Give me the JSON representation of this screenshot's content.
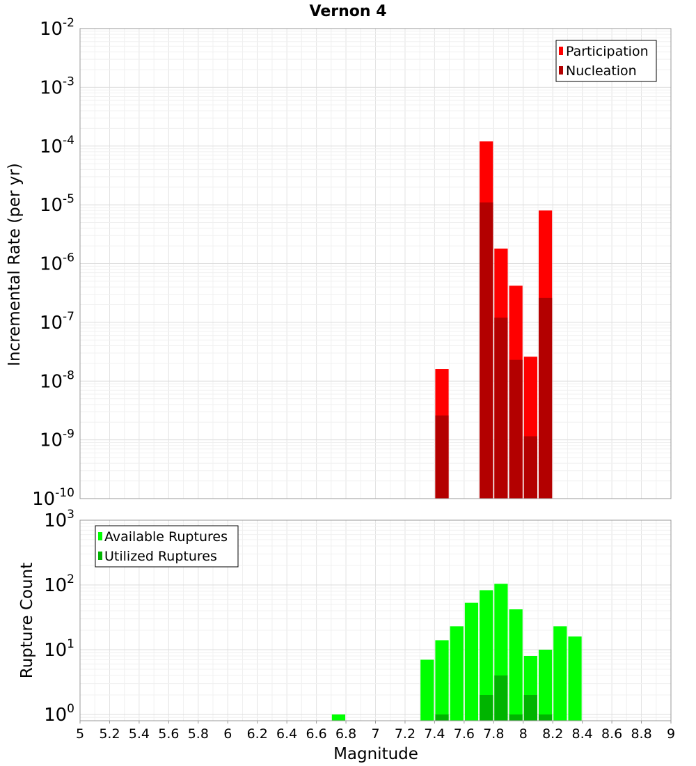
{
  "chart_data": [
    {
      "type": "bar",
      "title": "Vernon 4",
      "ylabel": "Incremental Rate (per yr)",
      "xlabel": "",
      "xlim": [
        5,
        9
      ],
      "ylim": [
        1e-10,
        0.01
      ],
      "yscale": "log",
      "y_tick_exponents": [
        "-10",
        "-9",
        "-8",
        "-7",
        "-6",
        "-5",
        "-4",
        "-3",
        "-2"
      ],
      "y_tick_base": "10",
      "bin_width": 0.1,
      "legend_position": "top-right",
      "series": [
        {
          "name": "Participation",
          "color": "#ff0000",
          "x": [
            7.45,
            7.75,
            7.85,
            7.95,
            8.05,
            8.15
          ],
          "values": [
            1.6e-08,
            0.00012,
            1.8e-06,
            4.2e-07,
            2.6e-08,
            8e-06
          ]
        },
        {
          "name": "Nucleation",
          "color": "#b30000",
          "x": [
            7.45,
            7.75,
            7.85,
            7.95,
            8.05,
            8.15
          ],
          "values": [
            2.6e-09,
            1.1e-05,
            1.2e-07,
            2.3e-08,
            1.15e-09,
            2.6e-07
          ]
        }
      ]
    },
    {
      "type": "bar",
      "title": "",
      "ylabel": "Rupture Count",
      "xlabel": "Magnitude",
      "xlim": [
        5,
        9
      ],
      "ylim": [
        0.8,
        1000
      ],
      "yscale": "log",
      "y_tick_exponents": [
        "0",
        "1",
        "2",
        "3"
      ],
      "y_tick_base": "10",
      "x_ticks": [
        "5",
        "5.2",
        "5.4",
        "5.6",
        "5.8",
        "6",
        "6.2",
        "6.4",
        "6.6",
        "6.8",
        "7",
        "7.2",
        "7.4",
        "7.6",
        "7.8",
        "8",
        "8.2",
        "8.4",
        "8.6",
        "8.8",
        "9"
      ],
      "bin_width": 0.1,
      "legend_position": "top-left",
      "series": [
        {
          "name": "Available Ruptures",
          "color": "#00ff00",
          "x": [
            6.75,
            7.35,
            7.45,
            7.55,
            7.65,
            7.75,
            7.85,
            7.95,
            8.05,
            8.15,
            8.25,
            8.35
          ],
          "values": [
            1,
            7,
            14,
            23,
            53,
            83,
            104,
            42,
            8,
            10,
            23,
            16
          ]
        },
        {
          "name": "Utilized Ruptures",
          "color": "#00b400",
          "x": [
            7.45,
            7.75,
            7.85,
            7.95,
            8.05,
            8.15
          ],
          "values": [
            1,
            2,
            4,
            1,
            2,
            1
          ]
        }
      ]
    }
  ]
}
